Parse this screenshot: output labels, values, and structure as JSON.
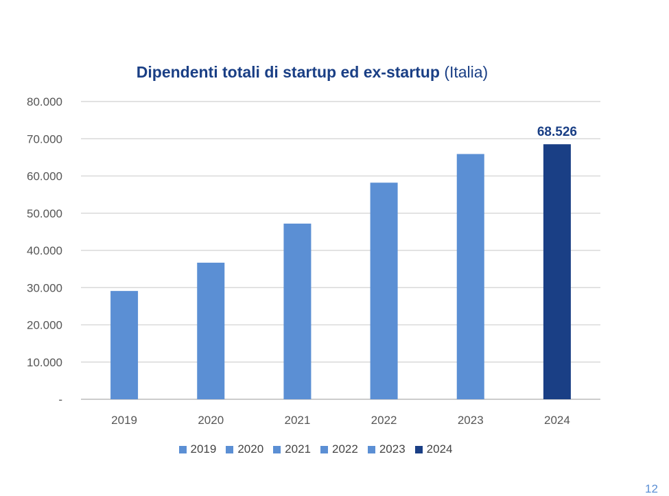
{
  "chart_data": {
    "type": "bar",
    "title": "Dipendenti totali di startup ed ex-startup",
    "subtitle": "(Italia)",
    "categories": [
      "2019",
      "2020",
      "2021",
      "2022",
      "2023",
      "2024"
    ],
    "values": [
      29100,
      36700,
      47200,
      58200,
      65900,
      68526
    ],
    "data_labels": [
      null,
      null,
      null,
      null,
      null,
      "68.526"
    ],
    "y_ticks": [
      "-",
      "10.000",
      "20.000",
      "30.000",
      "40.000",
      "50.000",
      "60.000",
      "70.000",
      "80.000"
    ],
    "ylim": [
      0,
      80000
    ],
    "grid": true,
    "legend": [
      "2019",
      "2020",
      "2021",
      "2022",
      "2023",
      "2024"
    ],
    "legend_placement": "bottom",
    "colors": [
      "#5b8fd4",
      "#5b8fd4",
      "#5b8fd4",
      "#5b8fd4",
      "#5b8fd4",
      "#1a3f85"
    ]
  },
  "page_number": "12"
}
